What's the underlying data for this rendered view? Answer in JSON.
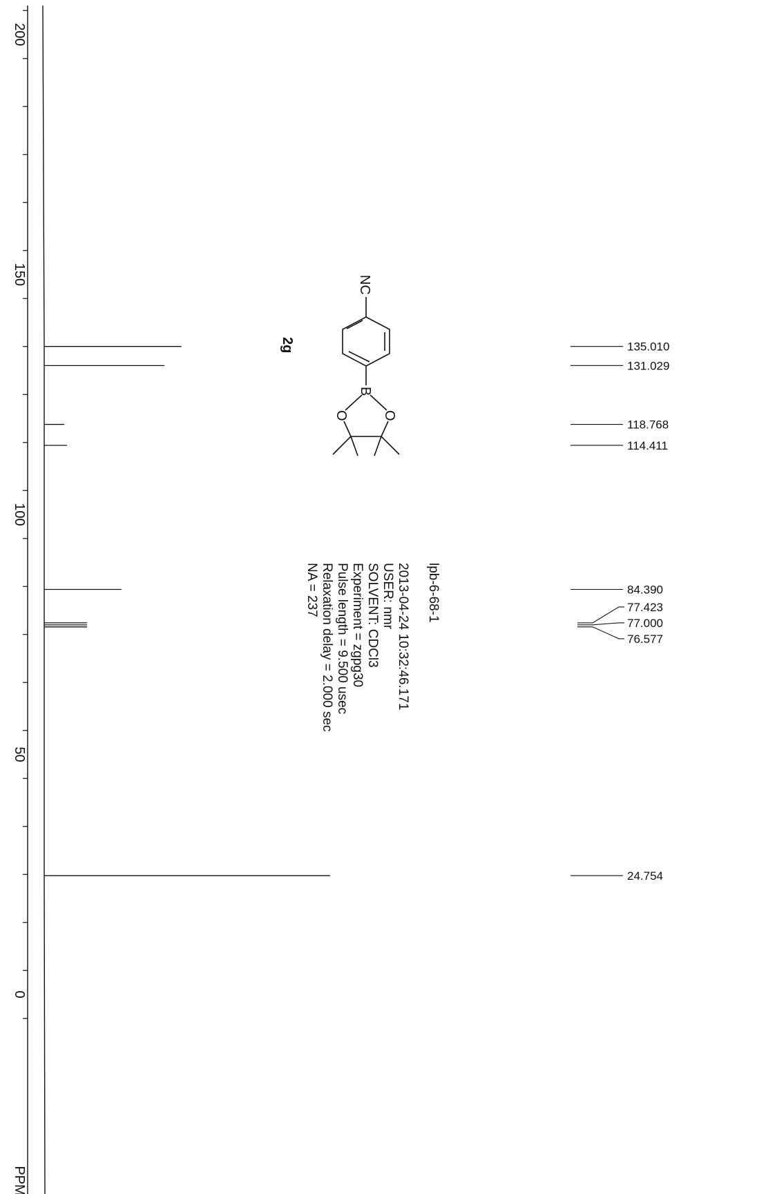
{
  "chart_data": {
    "type": "line",
    "title": "",
    "xlabel": "PPM",
    "ylabel": "",
    "xlim": [
      -8,
      209
    ],
    "x_direction": "decreasing",
    "orientation": "rotated-90",
    "x_ticks": [
      0,
      50,
      100,
      150,
      200
    ],
    "x_tick_labels": [
      "0",
      "50",
      "100",
      "150",
      "200"
    ],
    "series": [
      {
        "peaks": [
          {
            "ppm": 135.01,
            "intensity": 0.48,
            "label": "135.010"
          },
          {
            "ppm": 131.029,
            "intensity": 0.42,
            "label": "131.029"
          },
          {
            "ppm": 118.768,
            "intensity": 0.07,
            "label": "118.768"
          },
          {
            "ppm": 114.411,
            "intensity": 0.08,
            "label": "114.411"
          },
          {
            "ppm": 84.39,
            "intensity": 0.27,
            "label": "84.390"
          },
          {
            "ppm": 77.423,
            "intensity": 0.15,
            "label": "77.423"
          },
          {
            "ppm": 77.0,
            "intensity": 0.15,
            "label": "77.000"
          },
          {
            "ppm": 76.577,
            "intensity": 0.15,
            "label": "76.577"
          },
          {
            "ppm": 24.754,
            "intensity": 1.0,
            "label": "24.754"
          }
        ]
      }
    ],
    "grid": false,
    "legend": "none"
  },
  "metadata_lines": [
    "lpb-6-68-1",
    "",
    "2013-04-24 10:32:46.171",
    "USER: nmr",
    "SOLVENT: CDCl3",
    "Experiment = zgpg30",
    "Pulse length =   9.500 usec",
    "Relaxation delay =   2.000 sec",
    "NA  =   237"
  ],
  "compound": {
    "label": "2g",
    "nitrile_label": "NC",
    "boron_label": "B",
    "oxygen_labels": [
      "O",
      "O"
    ]
  },
  "colors": {
    "trace": "#111111",
    "background": "#ffffff"
  }
}
